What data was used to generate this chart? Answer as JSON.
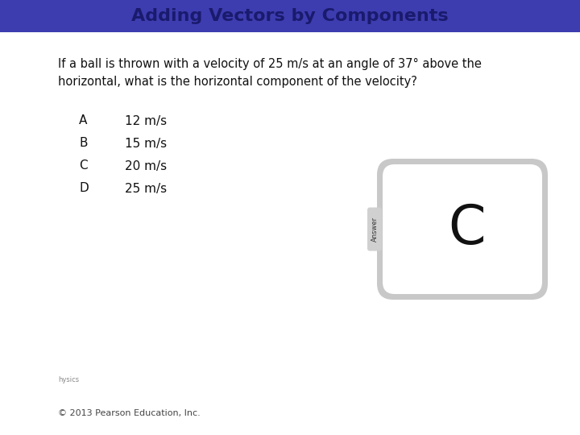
{
  "title": "Adding Vectors by Components",
  "title_bg_color": "#3d3db0",
  "title_text_color": "#1a1a6e",
  "title_fontsize": 16,
  "body_bg_color": "#ffffff",
  "question": "If a ball is thrown with a velocity of 25 m/s at an angle of 37° above the\nhorizontal, what is the horizontal component of the velocity?",
  "question_fontsize": 10.5,
  "choices": [
    [
      "A",
      "12 m/s"
    ],
    [
      "B",
      "15 m/s"
    ],
    [
      "C",
      "20 m/s"
    ],
    [
      "D",
      "25 m/s"
    ]
  ],
  "choice_fontsize": 11,
  "answer": "C",
  "answer_fontsize": 48,
  "answer_box_bg": "#ffffff",
  "answer_box_border": "#c8c8c8",
  "answer_tab_bg": "#d0d0d0",
  "answer_tab_text": "Answer",
  "answer_tab_fontsize": 6,
  "footer": "© 2013 Pearson Education, Inc.",
  "footer_fontsize": 8,
  "small_text": "hysics",
  "small_text_fontsize": 6
}
